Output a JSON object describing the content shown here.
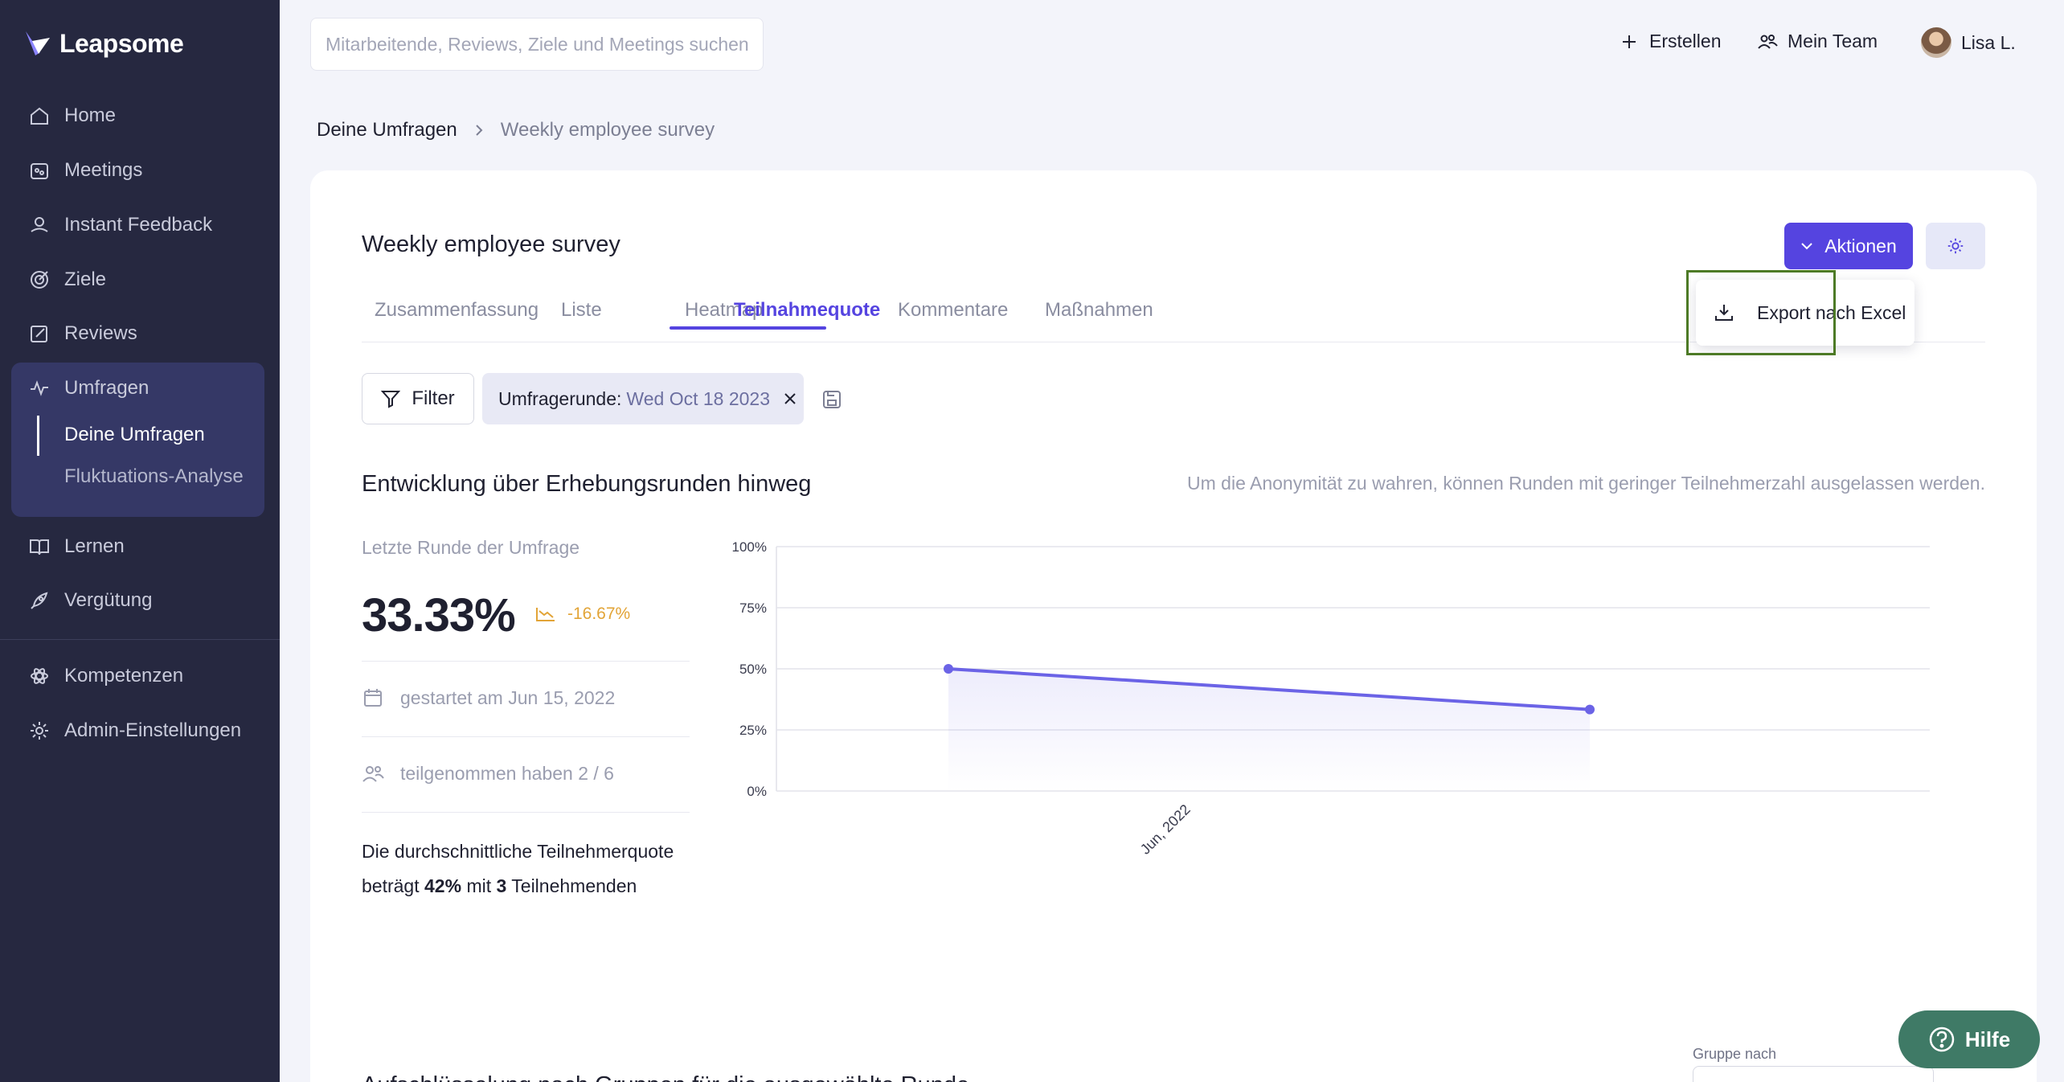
{
  "brand": {
    "name": "Leapsome"
  },
  "sidebar": {
    "items": [
      {
        "label": "Home",
        "icon": "home-icon"
      },
      {
        "label": "Meetings",
        "icon": "meetings-icon"
      },
      {
        "label": "Instant Feedback",
        "icon": "feedback-icon"
      },
      {
        "label": "Ziele",
        "icon": "target-icon"
      },
      {
        "label": "Reviews",
        "icon": "edit-icon"
      },
      {
        "label": "Umfragen",
        "icon": "pulse-icon"
      },
      {
        "label": "Lernen",
        "icon": "book-icon"
      },
      {
        "label": "Vergütung",
        "icon": "rocket-icon"
      },
      {
        "label": "Kompetenzen",
        "icon": "atom-icon"
      },
      {
        "label": "Admin-Einstellungen",
        "icon": "gear-icon"
      }
    ],
    "subitems": [
      "Deine Umfragen",
      "Fluktuations-Analyse"
    ]
  },
  "topbar": {
    "search_placeholder": "Mitarbeitende, Reviews, Ziele und Meetings suchen",
    "create": "Erstellen",
    "team": "Mein Team",
    "user": "Lisa L."
  },
  "breadcrumb": [
    "Deine Umfragen",
    "Weekly employee survey"
  ],
  "survey": {
    "title": "Weekly employee survey",
    "actions_label": "Aktionen",
    "export_label": "Export nach Excel",
    "tabs": [
      "Zusammenfassung",
      "Liste",
      "Heatmap",
      "Teilnahmequote",
      "Kommentare",
      "Maßnahmen"
    ],
    "active_tab": "Teilnahmequote"
  },
  "filters": {
    "filter_label": "Filter",
    "chip_label": "Umfragerunde:",
    "chip_value": "Wed Oct 18 2023"
  },
  "section": {
    "title": "Entwicklung über Erhebungsrunden hinweg",
    "note": "Um die Anonymität zu wahren, können Runden mit geringer Teilnehmerzahl ausgelassen werden."
  },
  "stats": {
    "label": "Letzte Runde der Umfrage",
    "value": "33.33%",
    "trend": "-16.67%",
    "started": "gestartet am Jun 15, 2022",
    "participated": "teilgenommen haben 2 / 6",
    "avg_prefix": "Die durchschnittliche Teilnehmerquote beträgt",
    "avg_rate": "42%",
    "avg_mid": "mit",
    "avg_count": "3",
    "avg_suffix": "Teilnehmenden"
  },
  "chart_data": {
    "type": "area",
    "x_labels": [
      "Jun, 2022"
    ],
    "series": [
      {
        "values": [
          50,
          33.33
        ]
      }
    ],
    "y_ticks": [
      "0%",
      "25%",
      "50%",
      "75%",
      "100%"
    ],
    "ylim": [
      0,
      100
    ],
    "grid": true,
    "color": "#6b63e6"
  },
  "group": {
    "label": "Gruppe nach"
  },
  "section2": {
    "title": "Aufschlüsselung nach Gruppen für die ausgewählte Runde"
  },
  "help": {
    "label": "Hilfe"
  },
  "colors": {
    "accent": "#5544e0",
    "sidebar": "#262840",
    "help": "#3f7a66",
    "trend": "#e2a437",
    "highlight": "#4d7a26"
  }
}
